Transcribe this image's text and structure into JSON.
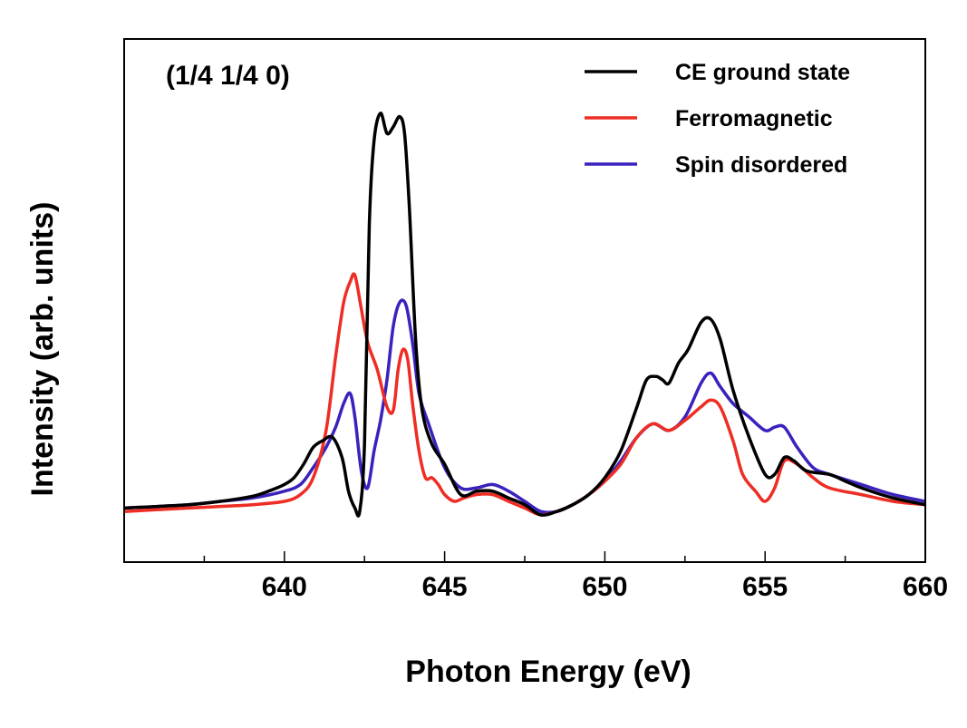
{
  "chart_data": {
    "type": "line",
    "title": "",
    "annotation": "(1/4 1/4 0)",
    "xlabel": "Photon Energy (eV)",
    "ylabel": "Intensity (arb. units)",
    "xlim": [
      635,
      660
    ],
    "ylim": [
      -0.15,
      1.4
    ],
    "xticks": [
      640,
      645,
      650,
      655,
      660
    ],
    "xtick_labels": [
      "640",
      "645",
      "650",
      "655",
      "660"
    ],
    "x_minor_step": 2.5,
    "grid": false,
    "y_tick_labels_shown": false,
    "legend_position": "top-right",
    "series": [
      {
        "name": "CE ground state",
        "color": "#000000",
        "x": [
          635,
          637,
          638,
          639,
          639.5,
          640,
          640.3,
          640.6,
          640.9,
          641.2,
          641.5,
          641.8,
          642.0,
          642.2,
          642.35,
          642.5,
          642.65,
          642.8,
          643.0,
          643.2,
          643.4,
          643.6,
          643.75,
          643.9,
          644.1,
          644.3,
          644.6,
          645.0,
          645.5,
          646.0,
          646.5,
          647.0,
          647.5,
          648.0,
          648.5,
          649.0,
          649.5,
          650.0,
          650.5,
          651.0,
          651.3,
          651.6,
          651.8,
          652.0,
          652.3,
          652.6,
          653.0,
          653.3,
          653.6,
          654.0,
          654.5,
          655.0,
          655.3,
          655.6,
          655.9,
          656.3,
          657.0,
          657.5,
          658.0,
          659.0,
          660.0
        ],
        "y": [
          0.01,
          0.02,
          0.03,
          0.045,
          0.06,
          0.08,
          0.1,
          0.14,
          0.19,
          0.21,
          0.22,
          0.16,
          0.06,
          0.01,
          0.0,
          0.2,
          0.85,
          1.1,
          1.18,
          1.12,
          1.14,
          1.17,
          1.12,
          0.9,
          0.5,
          0.3,
          0.2,
          0.14,
          0.05,
          0.06,
          0.06,
          0.04,
          0.02,
          -0.01,
          0.0,
          0.02,
          0.05,
          0.1,
          0.18,
          0.31,
          0.39,
          0.4,
          0.39,
          0.38,
          0.44,
          0.48,
          0.56,
          0.57,
          0.51,
          0.36,
          0.22,
          0.11,
          0.11,
          0.16,
          0.15,
          0.12,
          0.11,
          0.09,
          0.07,
          0.04,
          0.02
        ]
      },
      {
        "name": "Ferromagnetic",
        "color": "#ee2d24",
        "x": [
          635,
          637,
          638,
          639,
          640,
          640.5,
          640.9,
          641.3,
          641.6,
          641.85,
          642.05,
          642.2,
          642.4,
          642.6,
          642.9,
          643.2,
          643.4,
          643.55,
          643.7,
          643.85,
          644.0,
          644.2,
          644.4,
          644.6,
          644.8,
          645.0,
          645.3,
          645.6,
          646.0,
          646.5,
          647.0,
          647.5,
          648.0,
          648.5,
          649.0,
          649.5,
          650.0,
          650.5,
          651.0,
          651.5,
          652.0,
          652.5,
          653.0,
          653.3,
          653.6,
          654.0,
          654.3,
          654.7,
          655.0,
          655.3,
          655.6,
          656.0,
          656.5,
          657.0,
          658.0,
          659.0,
          660.0
        ],
        "y": [
          0.0,
          0.01,
          0.015,
          0.02,
          0.03,
          0.05,
          0.1,
          0.24,
          0.46,
          0.62,
          0.68,
          0.7,
          0.6,
          0.5,
          0.42,
          0.31,
          0.3,
          0.42,
          0.48,
          0.45,
          0.32,
          0.18,
          0.1,
          0.1,
          0.08,
          0.05,
          0.03,
          0.04,
          0.05,
          0.05,
          0.03,
          0.01,
          -0.01,
          0.0,
          0.02,
          0.05,
          0.09,
          0.14,
          0.22,
          0.26,
          0.24,
          0.27,
          0.31,
          0.33,
          0.31,
          0.21,
          0.11,
          0.06,
          0.03,
          0.07,
          0.15,
          0.14,
          0.1,
          0.07,
          0.05,
          0.03,
          0.02
        ]
      },
      {
        "name": "Spin disordered",
        "color": "#3a22bd",
        "x": [
          635,
          637,
          638,
          639,
          640,
          640.5,
          640.9,
          641.3,
          641.6,
          641.85,
          642.05,
          642.2,
          642.4,
          642.6,
          642.8,
          643.0,
          643.2,
          643.4,
          643.6,
          643.8,
          644.0,
          644.2,
          644.5,
          645.0,
          645.5,
          646.0,
          646.5,
          647.0,
          647.5,
          648.0,
          648.5,
          649.0,
          649.5,
          650.0,
          650.5,
          651.0,
          651.5,
          652.0,
          652.5,
          653.0,
          653.3,
          653.6,
          654.0,
          654.5,
          655.0,
          655.3,
          655.6,
          656.0,
          656.5,
          657.0,
          658.0,
          659.0,
          660.0
        ],
        "y": [
          0.01,
          0.02,
          0.03,
          0.04,
          0.06,
          0.08,
          0.13,
          0.19,
          0.25,
          0.32,
          0.35,
          0.28,
          0.12,
          0.07,
          0.18,
          0.27,
          0.39,
          0.55,
          0.62,
          0.61,
          0.5,
          0.35,
          0.26,
          0.13,
          0.07,
          0.07,
          0.08,
          0.06,
          0.03,
          0.0,
          0.0,
          0.02,
          0.05,
          0.09,
          0.15,
          0.22,
          0.26,
          0.24,
          0.28,
          0.38,
          0.41,
          0.37,
          0.32,
          0.28,
          0.24,
          0.25,
          0.25,
          0.19,
          0.13,
          0.11,
          0.08,
          0.05,
          0.03
        ]
      }
    ]
  }
}
